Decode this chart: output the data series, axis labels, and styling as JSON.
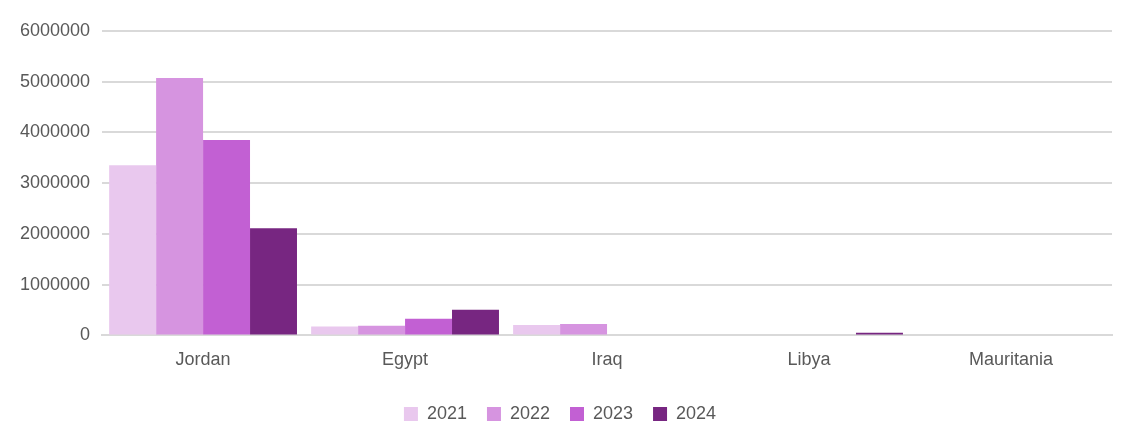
{
  "chart_data": {
    "type": "bar",
    "categories": [
      "Jordan",
      "Egypt",
      "Iraq",
      "Libya",
      "Mauritania"
    ],
    "series": [
      {
        "name": "2021",
        "color": "#e9c8ee",
        "values": [
          3350000,
          175000,
          205000,
          0,
          0
        ]
      },
      {
        "name": "2022",
        "color": "#d694e0",
        "values": [
          5070000,
          190000,
          225000,
          0,
          0
        ]
      },
      {
        "name": "2023",
        "color": "#c260d3",
        "values": [
          3850000,
          330000,
          0,
          0,
          0
        ]
      },
      {
        "name": "2024",
        "color": "#772681",
        "values": [
          2110000,
          505000,
          0,
          50000,
          0
        ]
      }
    ],
    "ylim": [
      0,
      6000000
    ],
    "yticks": [
      0,
      1000000,
      2000000,
      3000000,
      4000000,
      5000000,
      6000000
    ],
    "grid": "y",
    "legend": "bottom"
  }
}
